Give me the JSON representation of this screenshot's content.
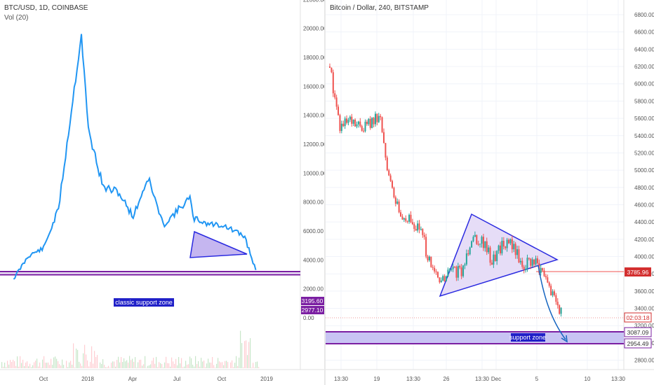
{
  "left": {
    "title": "BTC/USD, 1D, COINBASE",
    "subtitle": "Vol (20)",
    "y_ticks": [
      "22000.00",
      "20000.00",
      "18000.00",
      "16000.00",
      "14000.00",
      "12000.00",
      "10000.00",
      "8000.00",
      "6000.00",
      "4000.00",
      "2000.00",
      "0.00"
    ],
    "x_ticks": [
      "Oct",
      "2018",
      "Apr",
      "Jul",
      "Oct",
      "2019"
    ],
    "annotation": "classic support zone",
    "price_badges": [
      "3195.60",
      "2977.10"
    ],
    "colors": {
      "line": "#2196f3",
      "support": "#7b1fa2",
      "triangle": "#2a2ae0",
      "triangle_fill": "#c5b6f0",
      "badge": "#7b1fa2",
      "label_bg": "#2020c8"
    }
  },
  "right": {
    "title": "Bitcoin / Dollar, 240, BITSTAMP",
    "y_ticks": [
      "6800.00",
      "6600.00",
      "6400.00",
      "6200.00",
      "6000.00",
      "5800.00",
      "5600.00",
      "5400.00",
      "5200.00",
      "5000.00",
      "4800.00",
      "4600.00",
      "4400.00",
      "4200.00",
      "4000.00",
      "3800.00",
      "3600.00",
      "3400.00",
      "3200.00",
      "3000.00",
      "2800.00"
    ],
    "x_ticks": [
      "13:30",
      "19",
      "13:30",
      "26",
      "13:30",
      "Dec",
      "5",
      "10",
      "13:30"
    ],
    "annotation": "support zone",
    "price_badges": [
      "3785.96",
      "02:03:18",
      "3087.09",
      "2954.49"
    ],
    "colors": {
      "up": "#26a69a",
      "down": "#ef5350",
      "triangle": "#2a2ae0",
      "triangle_fill": "#e6ddf7",
      "resistance": "#ef5350",
      "support": "#7b1fa2",
      "support_fill": "#c8c4f3",
      "arrow": "#1565c0",
      "badge_red": "#d32f2f",
      "badge_purple": "#7b1fa2",
      "label_bg": "#2020c8"
    }
  },
  "chart_data": [
    {
      "type": "line",
      "title": "BTC/USD, 1D, COINBASE",
      "x": [
        "2017-08",
        "2017-09",
        "2017-10",
        "2017-11",
        "2017-12-17",
        "2018-01",
        "2018-02",
        "2018-03",
        "2018-04",
        "2018-05",
        "2018-06",
        "2018-07-25",
        "2018-08",
        "2018-09",
        "2018-10",
        "2018-11-15",
        "2018-12-07"
      ],
      "y": [
        2700,
        4300,
        4800,
        7500,
        19600,
        13000,
        9000,
        8700,
        7000,
        9700,
        6400,
        8300,
        6900,
        6500,
        6400,
        5600,
        3300
      ],
      "ylim": [
        -800,
        23500
      ],
      "grid": false,
      "support_zone": [
        2977.1,
        3195.6
      ]
    },
    {
      "type": "candlestick",
      "title": "Bitcoin / Dollar, 240, BITSTAMP",
      "x": [
        "Nov 14",
        "Nov 15",
        "Nov 16",
        "Nov 17",
        "Nov 18",
        "Nov 19",
        "Nov 20",
        "Nov 21",
        "Nov 22",
        "Nov 23",
        "Nov 24",
        "Nov 25",
        "Nov 26",
        "Nov 27",
        "Nov 28",
        "Nov 29",
        "Nov 30",
        "Dec 1",
        "Dec 2",
        "Dec 3",
        "Dec 4",
        "Dec 5",
        "Dec 6",
        "Dec 7"
      ],
      "y": [
        6200,
        5500,
        5550,
        5500,
        5550,
        5600,
        4800,
        4500,
        4400,
        4300,
        3850,
        3700,
        3850,
        3800,
        4250,
        4200,
        3950,
        4150,
        4150,
        3900,
        3950,
        3800,
        3550,
        3350
      ],
      "ylim": [
        2680,
        6900
      ],
      "grid": true,
      "resistance_level": 3785.96,
      "support_zone": [
        2954.49,
        3087.09
      ],
      "last_price": 3400
    }
  ]
}
